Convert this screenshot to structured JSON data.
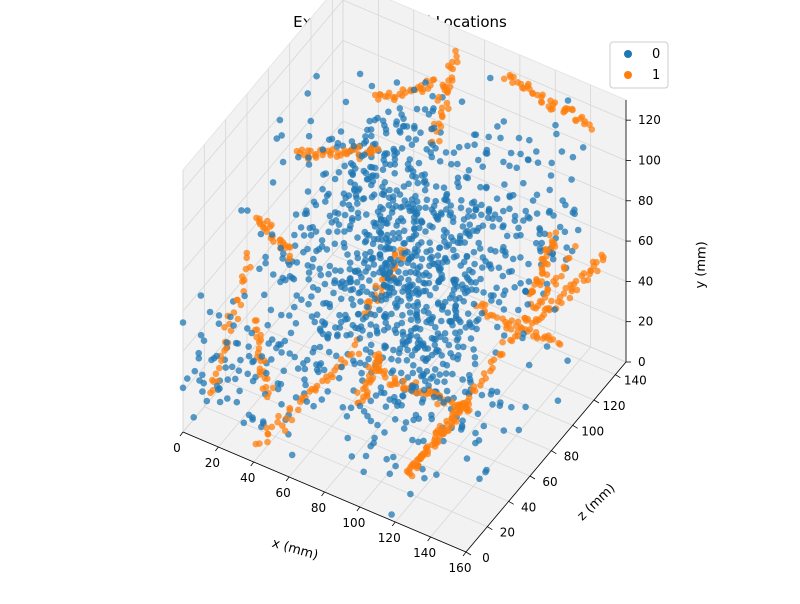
{
  "chart_data": {
    "type": "scatter",
    "title": "Example MC Voxel Locations",
    "xlabel": "x (mm)",
    "ylabel": "y (mm)",
    "zlabel": "z (mm)",
    "xlim": [
      0,
      160
    ],
    "ylim": [
      0,
      130
    ],
    "zlim": [
      0,
      150
    ],
    "x_ticks": [
      "0",
      "20",
      "40",
      "60",
      "80",
      "100",
      "120",
      "140",
      "160"
    ],
    "y_ticks": [
      "0",
      "20",
      "40",
      "60",
      "80",
      "100",
      "120"
    ],
    "z_ticks": [
      "0",
      "20",
      "40",
      "60",
      "80",
      "100",
      "120",
      "140"
    ],
    "grid": true,
    "legend_position": "top-right",
    "series": [
      {
        "name": "0",
        "color": "#1f77b4",
        "clusters": [
          {
            "x": 80,
            "y": 65,
            "z": 75,
            "sx": 30,
            "sy": 25,
            "sz": 30,
            "n": 520
          },
          {
            "x": 60,
            "y": 90,
            "z": 95,
            "sx": 20,
            "sy": 20,
            "sz": 20,
            "n": 180
          },
          {
            "x": 100,
            "y": 55,
            "z": 60,
            "sx": 18,
            "sy": 18,
            "sz": 22,
            "n": 160
          },
          {
            "x": 35,
            "y": 40,
            "z": 60,
            "sx": 18,
            "sy": 25,
            "sz": 30,
            "n": 110
          },
          {
            "x": 110,
            "y": 25,
            "z": 40,
            "sx": 22,
            "sy": 15,
            "sz": 25,
            "n": 100
          },
          {
            "x": 130,
            "y": 90,
            "z": 110,
            "sx": 15,
            "sy": 20,
            "sz": 20,
            "n": 80
          },
          {
            "x": 20,
            "y": 25,
            "z": 20,
            "sx": 20,
            "sy": 15,
            "sz": 15,
            "n": 60
          }
        ]
      },
      {
        "name": "1",
        "color": "#ff7f0e",
        "tracks": [
          {
            "from": [
              115,
              10,
              20
            ],
            "to": [
              150,
              60,
              15
            ],
            "n": 70
          },
          {
            "from": [
              150,
              60,
              15
            ],
            "to": [
              160,
              85,
              100
            ],
            "n": 45
          },
          {
            "from": [
              140,
              45,
              95
            ],
            "to": [
              160,
              65,
              130
            ],
            "n": 40
          },
          {
            "from": [
              150,
              90,
              100
            ],
            "to": [
              130,
              45,
              110
            ],
            "n": 35
          },
          {
            "from": [
              95,
              120,
              145
            ],
            "to": [
              140,
              110,
              150
            ],
            "n": 40
          },
          {
            "from": [
              70,
              125,
              140
            ],
            "to": [
              70,
              95,
              120
            ],
            "n": 30
          },
          {
            "from": [
              10,
              85,
              90
            ],
            "to": [
              50,
              95,
              100
            ],
            "n": 40
          },
          {
            "from": [
              5,
              70,
              60
            ],
            "to": [
              25,
              60,
              60
            ],
            "n": 25
          },
          {
            "from": [
              15,
              35,
              40
            ],
            "to": [
              30,
              10,
              30
            ],
            "n": 25
          },
          {
            "from": [
              40,
              5,
              5
            ],
            "to": [
              75,
              45,
              40
            ],
            "n": 40
          },
          {
            "from": [
              90,
              40,
              35
            ],
            "to": [
              130,
              25,
              55
            ],
            "n": 45
          },
          {
            "from": [
              100,
              30,
              110
            ],
            "to": [
              140,
              20,
              120
            ],
            "n": 35
          },
          {
            "from": [
              55,
              30,
              80
            ],
            "to": [
              70,
              60,
              90
            ],
            "n": 30
          },
          {
            "from": [
              100,
              65,
              20
            ],
            "to": [
              85,
              30,
              25
            ],
            "n": 30
          },
          {
            "from": [
              30,
              95,
              130
            ],
            "to": [
              60,
              105,
              145
            ],
            "n": 30
          },
          {
            "from": [
              10,
              15,
              10
            ],
            "to": [
              5,
              55,
              55
            ],
            "n": 30
          }
        ]
      }
    ]
  }
}
